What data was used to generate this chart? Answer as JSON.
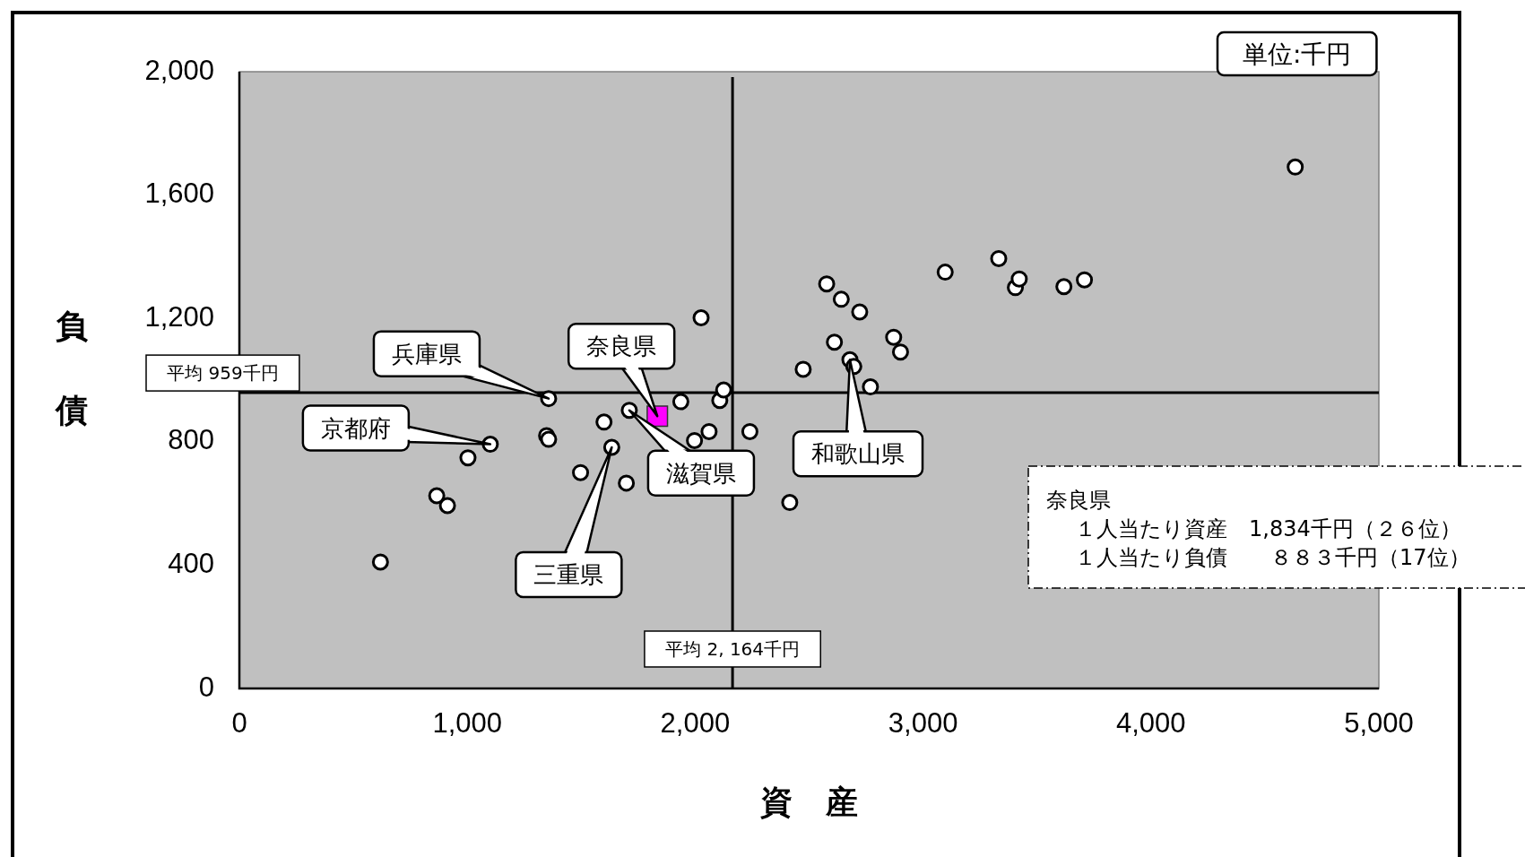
{
  "chart_data": {
    "type": "scatter",
    "xlabel": "資 産",
    "ylabel": "負債",
    "xlim": [
      0,
      5000
    ],
    "ylim": [
      0,
      2000
    ],
    "xticks": [
      0,
      {
        "value": 1000,
        "label": "1,000"
      },
      {
        "value": 2000,
        "label": "2,000"
      },
      {
        "value": 3000,
        "label": "3,000"
      },
      {
        "value": 4000,
        "label": "4,000"
      },
      {
        "value": 5000,
        "label": "5,000"
      }
    ],
    "yticks": [
      0,
      400,
      800,
      {
        "value": 1200,
        "label": "1,200"
      },
      {
        "value": 1600,
        "label": "1,600"
      },
      {
        "value": 2000,
        "label": "2,000"
      }
    ],
    "grid": false,
    "legend": false,
    "series": [
      {
        "color": "#ffffff",
        "marker": "circle",
        "x": [
          619,
          866,
          913,
          1003,
          1101,
          1357,
          1348,
          1357,
          1497,
          1600,
          1634,
          1698,
          1711,
          1937,
          2026,
          1997,
          2061,
          2108,
          2125,
          2240,
          2415,
          2474,
          2577,
          2611,
          2641,
          2722,
          2679,
          2696,
          2769,
          2871,
          2901,
          3097,
          3332,
          3405,
          3422,
          3618,
          3708,
          4633
        ],
        "values": [
          410,
          625,
          593,
          748,
          792,
          940,
          820,
          808,
          700,
          864,
          782,
          666,
          902,
          930,
          1202,
          804,
          833,
          934,
          968,
          833,
          603,
          1035,
          1312,
          1123,
          1262,
          1221,
          1066,
          1044,
          978,
          1139,
          1091,
          1350,
          1394,
          1300,
          1328,
          1303,
          1325,
          1691
        ]
      },
      {
        "color": "#ff00ff",
        "marker": "square",
        "x": [
          1834
        ],
        "values": [
          883
        ]
      }
    ],
    "ref_lines": [
      {
        "axis": "y",
        "value": 959,
        "label": "平均  959千円",
        "color": "#000000"
      },
      {
        "axis": "x",
        "value": 2164,
        "label": "平均  2, 164千円",
        "color": "#000000"
      }
    ],
    "annotations": [
      "単位:千円",
      "奈良県",
      "１人当たり資産　1,834千円（２６位）",
      "１人当たり負債　　８８３千円（17位）",
      {
        "text": "兵庫県",
        "x": 1357,
        "y": 940
      },
      {
        "text": "京都府",
        "x": 1101,
        "y": 792
      },
      {
        "text": "奈良県",
        "x": 1834,
        "y": 883
      },
      {
        "text": "滋賀県",
        "x": 1711,
        "y": 902
      },
      {
        "text": "三重県",
        "x": 1634,
        "y": 782
      },
      {
        "text": "和歌山県",
        "x": 2679,
        "y": 1066
      }
    ]
  }
}
